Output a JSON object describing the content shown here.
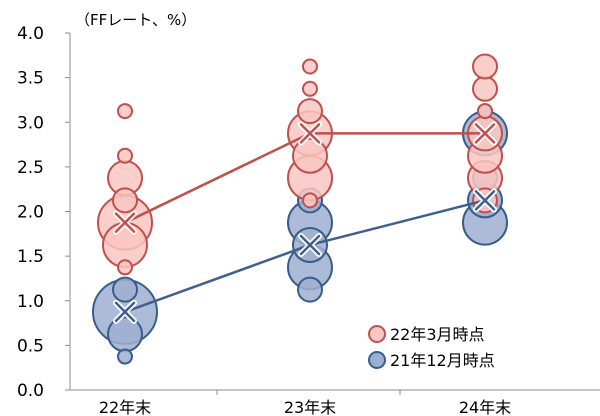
{
  "chart_data": {
    "type": "scatter",
    "unit_label": "（FFレート、%）",
    "categories": [
      "22年末",
      "23年末",
      "24年末"
    ],
    "ylim": [
      0,
      4.0
    ],
    "yticks": [
      "0.0",
      "0.5",
      "1.0",
      "1.5",
      "2.0",
      "2.5",
      "3.0",
      "3.5",
      "4.0"
    ],
    "grid": false,
    "legend_position": "bottom-right",
    "series": [
      {
        "name": "21年12月時点",
        "fill": "#9dafd0",
        "stroke": "#385d8a",
        "line": "#3f5f8f",
        "median": [
          0.875,
          1.625,
          2.125
        ],
        "dots": [
          [
            {
              "y": 0.375,
              "n": 1
            },
            {
              "y": 0.625,
              "n": 3
            },
            {
              "y": 0.875,
              "n": 6
            },
            {
              "y": 1.125,
              "n": 2
            }
          ],
          [
            {
              "y": 1.125,
              "n": 2
            },
            {
              "y": 1.375,
              "n": 4
            },
            {
              "y": 1.625,
              "n": 3
            },
            {
              "y": 1.875,
              "n": 4
            },
            {
              "y": 2.125,
              "n": 2
            }
          ],
          [
            {
              "y": 1.875,
              "n": 4
            },
            {
              "y": 2.125,
              "n": 3
            },
            {
              "y": 2.375,
              "n": 2
            },
            {
              "y": 2.875,
              "n": 4
            },
            {
              "y": 3.125,
              "n": 1
            }
          ]
        ]
      },
      {
        "name": "22年3月時点",
        "fill": "#f9c6c2",
        "stroke": "#c0504d",
        "line": "#c0504d",
        "median": [
          1.875,
          2.875,
          2.875
        ],
        "dots": [
          [
            {
              "y": 1.375,
              "n": 1
            },
            {
              "y": 1.625,
              "n": 4
            },
            {
              "y": 1.875,
              "n": 5
            },
            {
              "y": 2.125,
              "n": 2
            },
            {
              "y": 2.375,
              "n": 3
            },
            {
              "y": 2.625,
              "n": 1
            },
            {
              "y": 3.125,
              "n": 1
            }
          ],
          [
            {
              "y": 2.125,
              "n": 1
            },
            {
              "y": 2.375,
              "n": 4
            },
            {
              "y": 2.625,
              "n": 3
            },
            {
              "y": 2.875,
              "n": 4
            },
            {
              "y": 3.125,
              "n": 2
            },
            {
              "y": 3.375,
              "n": 1
            },
            {
              "y": 3.625,
              "n": 1
            }
          ],
          [
            {
              "y": 2.125,
              "n": 2
            },
            {
              "y": 2.375,
              "n": 3
            },
            {
              "y": 2.625,
              "n": 3
            },
            {
              "y": 2.875,
              "n": 3
            },
            {
              "y": 3.125,
              "n": 1
            },
            {
              "y": 3.375,
              "n": 2
            },
            {
              "y": 3.625,
              "n": 2
            }
          ]
        ]
      }
    ],
    "legend": [
      {
        "label": "22年3月時点",
        "fill": "#f9c6c2",
        "stroke": "#c0504d"
      },
      {
        "label": "21年12月時点",
        "fill": "#9dafd0",
        "stroke": "#385d8a"
      }
    ]
  }
}
